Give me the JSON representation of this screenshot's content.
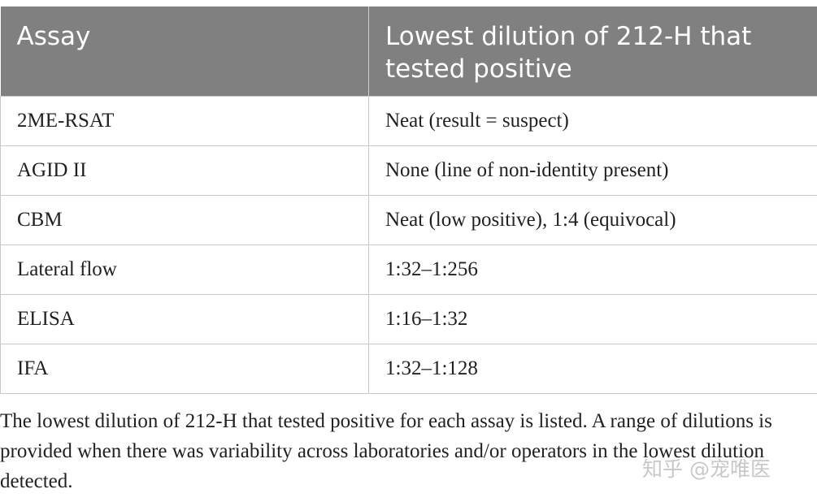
{
  "table": {
    "headers": [
      "Assay",
      "Lowest dilution of 212-H that tested positive"
    ],
    "rows": [
      [
        "2ME-RSAT",
        "Neat (result = suspect)"
      ],
      [
        "AGID II",
        "None (line of non-identity present)"
      ],
      [
        "CBM",
        "Neat (low positive), 1:4 (equivocal)"
      ],
      [
        "Lateral flow",
        "1:32–1:256"
      ],
      [
        "ELISA",
        "1:16–1:32"
      ],
      [
        "IFA",
        "1:32–1:128"
      ]
    ]
  },
  "footnote": "The lowest dilution of 212-H that tested positive for each assay is listed. A range of dilutions is provided when there was variability across laboratories and/or operators in the lowest dilution detected.",
  "watermark": "知乎 @宠唯医"
}
